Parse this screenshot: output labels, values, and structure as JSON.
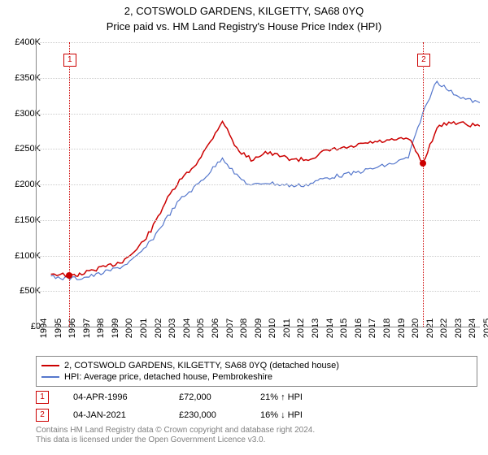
{
  "title_line1": "2, COTSWOLD GARDENS, KILGETTY, SA68 0YQ",
  "title_line2": "Price paid vs. HM Land Registry's House Price Index (HPI)",
  "chart": {
    "type": "line",
    "background_color": "#ffffff",
    "grid_color": "#cccccc",
    "axis_color": "#888888",
    "label_fontsize": 11,
    "x_axis": {
      "min_year": 1994,
      "max_year": 2025,
      "tick_step": 1,
      "ticks": [
        1994,
        1995,
        1996,
        1997,
        1998,
        1999,
        2000,
        2001,
        2002,
        2003,
        2004,
        2005,
        2006,
        2007,
        2008,
        2009,
        2010,
        2011,
        2012,
        2013,
        2014,
        2015,
        2016,
        2017,
        2018,
        2019,
        2020,
        2021,
        2022,
        2023,
        2024,
        2025
      ]
    },
    "y_axis": {
      "min": 0,
      "max": 400000,
      "tick_step": 50000,
      "prefix": "£",
      "suffix": "K",
      "ticks": [
        0,
        50000,
        100000,
        150000,
        200000,
        250000,
        300000,
        350000,
        400000
      ],
      "tick_labels": [
        "£0",
        "£50K",
        "£100K",
        "£150K",
        "£200K",
        "£250K",
        "£300K",
        "£350K",
        "£400K"
      ]
    },
    "series": [
      {
        "id": "price_paid",
        "label": "2, COTSWOLD GARDENS, KILGETTY, SA68 0YQ (detached house)",
        "color": "#cc0000",
        "line_width": 1.5,
        "x": [
          1995,
          1996.26,
          1997,
          1998,
          1999,
          2000,
          2001,
          2002,
          2003,
          2004,
          2005,
          2006,
          2007,
          2008,
          2009,
          2010,
          2011,
          2012,
          2013,
          2014,
          2015,
          2016,
          2017,
          2018,
          2019,
          2020,
          2021.01,
          2022,
          2023,
          2024,
          2025
        ],
        "y": [
          75000,
          72000,
          73000,
          80000,
          85000,
          92000,
          108000,
          135000,
          175000,
          205000,
          225000,
          255000,
          290000,
          250000,
          235000,
          245000,
          240000,
          235000,
          235000,
          245000,
          250000,
          252000,
          258000,
          260000,
          262000,
          265000,
          230000,
          280000,
          288000,
          285000,
          282000
        ]
      },
      {
        "id": "hpi",
        "label": "HPI: Average price, detached house, Pembrokeshire",
        "color": "#5577cc",
        "line_width": 1.2,
        "x": [
          1995,
          1996,
          1997,
          1998,
          1999,
          2000,
          2001,
          2002,
          2003,
          2004,
          2005,
          2006,
          2007,
          2008,
          2009,
          2010,
          2011,
          2012,
          2013,
          2014,
          2015,
          2016,
          2017,
          2018,
          2019,
          2020,
          2021,
          2022,
          2023,
          2024,
          2025
        ],
        "y": [
          70000,
          68000,
          68000,
          72000,
          78000,
          85000,
          98000,
          120000,
          150000,
          178000,
          195000,
          215000,
          238000,
          212000,
          198000,
          203000,
          200000,
          198000,
          200000,
          208000,
          212000,
          215000,
          220000,
          225000,
          230000,
          238000,
          300000,
          345000,
          330000,
          320000,
          315000
        ]
      }
    ],
    "markers": [
      {
        "idx": "1",
        "year": 1996.26,
        "price": 72000
      },
      {
        "idx": "2",
        "year": 2021.01,
        "price": 230000
      }
    ]
  },
  "legend": {
    "border_color": "#888888",
    "items": [
      {
        "color": "#cc0000",
        "label": "2, COTSWOLD GARDENS, KILGETTY, SA68 0YQ (detached house)"
      },
      {
        "color": "#5577cc",
        "label": "HPI: Average price, detached house, Pembrokeshire"
      }
    ]
  },
  "transactions": [
    {
      "idx": "1",
      "date": "04-APR-1996",
      "price": "£72,000",
      "pct": "21% ↑ HPI"
    },
    {
      "idx": "2",
      "date": "04-JAN-2021",
      "price": "£230,000",
      "pct": "16% ↓ HPI"
    }
  ],
  "footer_line1": "Contains HM Land Registry data © Crown copyright and database right 2024.",
  "footer_line2": "This data is licensed under the Open Government Licence v3.0."
}
